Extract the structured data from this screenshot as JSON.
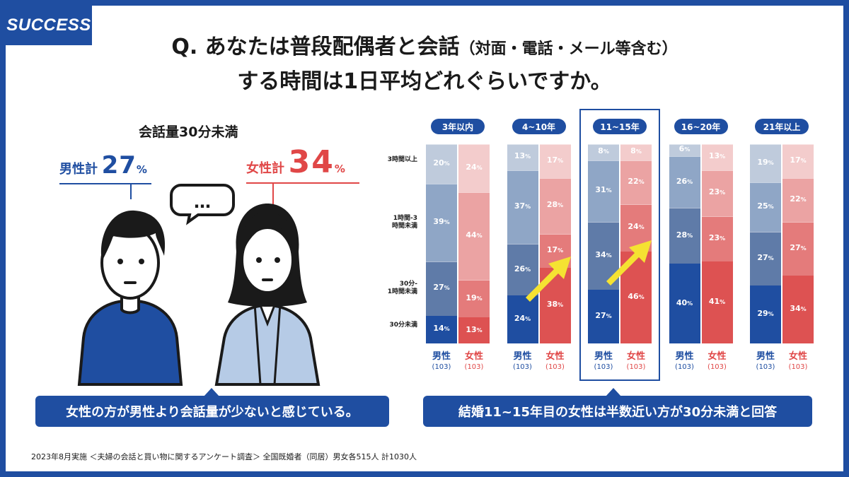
{
  "brand": "SUCCESS",
  "question": {
    "line1_main": "Q. あなたは普段配偶者と会話",
    "line1_sub": "（対面・電話・メール等含む）",
    "line2": "する時間は1日平均どれぐらいですか。"
  },
  "summary": {
    "heading": "会話量30分未満",
    "male_label": "男性計",
    "male_value": "27",
    "female_label": "女性計",
    "female_value": "34",
    "pct": "%",
    "bubble": "…",
    "callout_left": "女性の方が男性より会話量が少ないと感じている。",
    "callout_right": "結婚11~15年目の女性は半数近い方が30分未満と回答"
  },
  "footnote": "2023年8月実施 ＜夫婦の会話と買い物に関するアンケート調査＞ 全国既婚者（同居）男女各515人 計1030人",
  "colors": {
    "brand_blue": "#1f4ea1",
    "accent_red": "#e04747",
    "highlight_arrow": "#f5e232"
  },
  "chart_data": {
    "type": "bar",
    "stacked": true,
    "orientation": "vertical",
    "ylim": [
      0,
      100
    ],
    "categories": [
      "30分未満",
      "30分-1時間未満",
      "1時間-3時間未満",
      "3時間以上"
    ],
    "category_labels": [
      "30分未満",
      "30分-\n1時間未満",
      "1時間-3\n時間未満",
      "3時間以上"
    ],
    "groups": [
      {
        "label": "3年以内",
        "bars": [
          {
            "gender": "男性",
            "n": "(103)",
            "values": [
              14,
              27,
              39,
              20
            ]
          },
          {
            "gender": "女性",
            "n": "(103)",
            "values": [
              13,
              19,
              44,
              24
            ]
          }
        ]
      },
      {
        "label": "4~10年",
        "bars": [
          {
            "gender": "男性",
            "n": "(103)",
            "values": [
              24,
              26,
              37,
              13
            ]
          },
          {
            "gender": "女性",
            "n": "(103)",
            "values": [
              38,
              17,
              28,
              17
            ]
          }
        ]
      },
      {
        "label": "11~15年",
        "highlight": true,
        "bars": [
          {
            "gender": "男性",
            "n": "(103)",
            "values": [
              27,
              34,
              31,
              8
            ]
          },
          {
            "gender": "女性",
            "n": "(103)",
            "values": [
              46,
              24,
              22,
              8
            ]
          }
        ]
      },
      {
        "label": "16~20年",
        "bars": [
          {
            "gender": "男性",
            "n": "(103)",
            "values": [
              40,
              28,
              26,
              6
            ]
          },
          {
            "gender": "女性",
            "n": "(103)",
            "values": [
              41,
              23,
              23,
              13
            ]
          }
        ]
      },
      {
        "label": "21年以上",
        "bars": [
          {
            "gender": "男性",
            "n": "(103)",
            "values": [
              29,
              27,
              25,
              19
            ]
          },
          {
            "gender": "女性",
            "n": "(103)",
            "values": [
              34,
              27,
              22,
              17
            ]
          }
        ]
      }
    ],
    "unit": "%",
    "colors": {
      "male": [
        "#1f4ea1",
        "#5f7ba8",
        "#8fa6c6",
        "#bfcbdc"
      ],
      "female": [
        "#dd5252",
        "#e47b7b",
        "#eba3a3",
        "#f3cccc"
      ]
    },
    "arrows_on_groups": [
      "4~10年",
      "11~15年"
    ]
  }
}
